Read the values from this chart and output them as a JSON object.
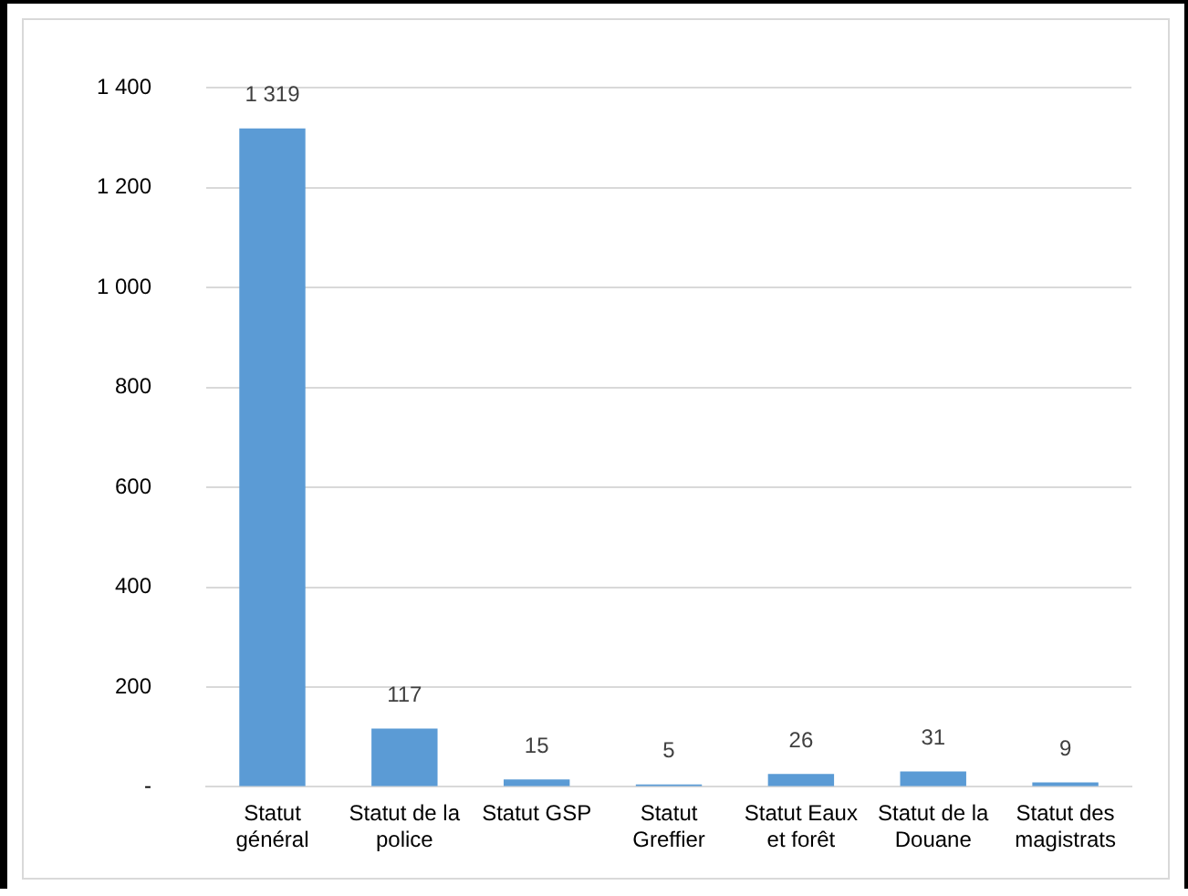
{
  "chart_data": {
    "type": "bar",
    "categories": [
      "Statut général",
      "Statut de la police",
      "Statut GSP",
      "Statut Greffier",
      "Statut Eaux et forêt",
      "Statut de la Douane",
      "Statut des magistrats"
    ],
    "values": [
      1319,
      117,
      15,
      5,
      26,
      31,
      9
    ],
    "value_labels": [
      "1 319",
      "117",
      "15",
      "5",
      "26",
      "31",
      "9"
    ],
    "color": "#5b9bd5",
    "ylim": [
      0,
      1400
    ],
    "yticks": [
      {
        "value": 0,
        "label": "-"
      },
      {
        "value": 200,
        "label": "200"
      },
      {
        "value": 400,
        "label": "400"
      },
      {
        "value": 600,
        "label": "600"
      },
      {
        "value": 800,
        "label": "800"
      },
      {
        "value": 1000,
        "label": "1 000"
      },
      {
        "value": 1200,
        "label": "1 200"
      },
      {
        "value": 1400,
        "label": "1 400"
      }
    ],
    "grid": "y",
    "legend": false
  }
}
